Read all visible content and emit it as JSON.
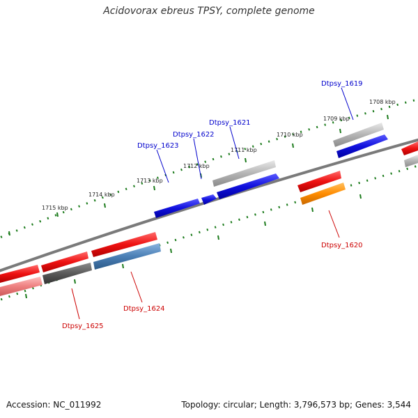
{
  "title": "Acidovorax ebreus TPSY, complete genome",
  "footer": {
    "accession": "Accession: NC_011992",
    "summary": "Topology: circular; Length: 3,796,573 bp; Genes: 3,544"
  },
  "colors": {
    "backbone": "#7a7a7a",
    "tick": "#1a7a1a",
    "red": "#ee1111",
    "blue": "#1010dd",
    "gray": "#aaaaaa",
    "darkgray": "#555555",
    "steelblue": "#4a7fb5",
    "orange": "#ff8c00",
    "pink": "#ee8080",
    "label_blue": "#0000cc",
    "label_red": "#cc0000"
  },
  "kbp_labels": [
    "1708 kbp",
    "1709 kbp",
    "1710 kbp",
    "1711 kbp",
    "1712 kbp",
    "1713 kbp",
    "1714 kbp",
    "1715 kbp"
  ],
  "gene_labels": [
    {
      "text": "Dtpsy_1619",
      "color": "label_blue"
    },
    {
      "text": "Dtpsy_1621",
      "color": "label_blue"
    },
    {
      "text": "Dtpsy_1622",
      "color": "label_blue"
    },
    {
      "text": "Dtpsy_1623",
      "color": "label_blue"
    },
    {
      "text": "Dtpsy_1620",
      "color": "label_red"
    },
    {
      "text": "Dtpsy_1624",
      "color": "label_red"
    },
    {
      "text": "Dtpsy_1625",
      "color": "label_red"
    }
  ]
}
